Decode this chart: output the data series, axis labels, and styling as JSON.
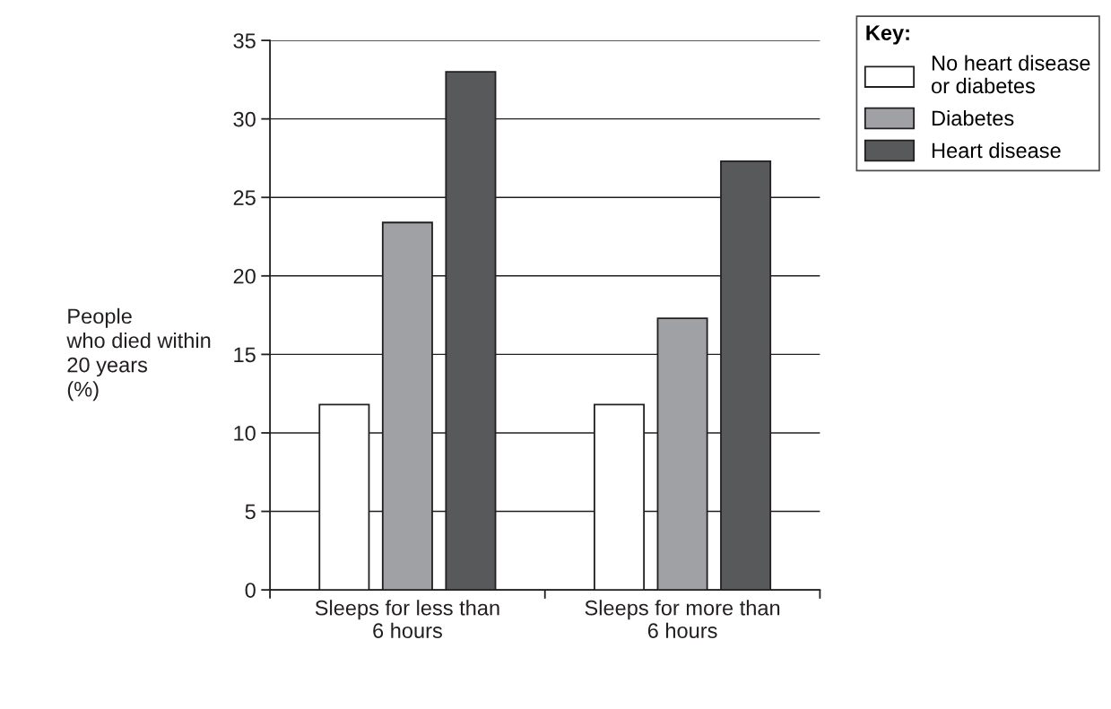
{
  "chart_data": {
    "type": "bar",
    "ylabel": "People\nwho died within\n20 years\n(%)",
    "legend_title": "Key:",
    "categories": [
      "Sleeps for less than\n6 hours",
      "Sleeps for more than\n6 hours"
    ],
    "series": [
      {
        "name": "No heart disease\nor diabetes",
        "color": "#ffffff",
        "values": [
          11.8,
          11.8
        ]
      },
      {
        "name": "Diabetes",
        "color": "#a0a1a4",
        "values": [
          23.4,
          17.3
        ]
      },
      {
        "name": "Heart disease",
        "color": "#58595b",
        "values": [
          33,
          27.3
        ]
      }
    ],
    "ylim": [
      0,
      35
    ],
    "yticks": [
      0,
      5,
      10,
      15,
      20,
      25,
      30,
      35
    ],
    "grid": "y",
    "legend": "top right"
  }
}
